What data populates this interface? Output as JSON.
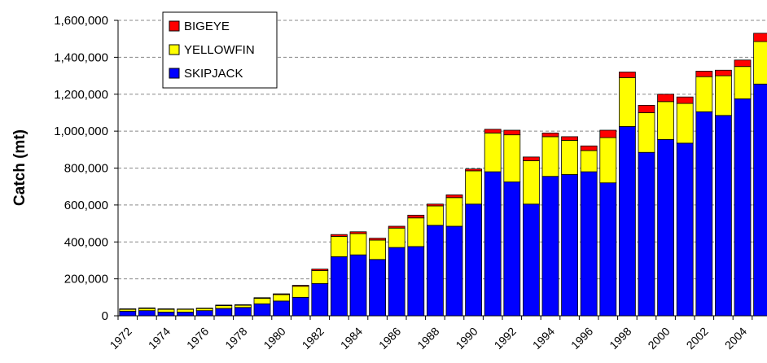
{
  "chart_data": {
    "type": "stacked_bar",
    "y_label": "Catch (mt)",
    "categories": [
      "1972",
      null,
      "1974",
      null,
      "1976",
      null,
      "1978",
      null,
      "1980",
      null,
      "1982",
      null,
      "1984",
      null,
      "1986",
      null,
      "1988",
      null,
      "1990",
      null,
      "1992",
      null,
      "1994",
      null,
      "1996",
      null,
      "1998",
      null,
      "2000",
      null,
      "2002",
      null,
      "2004",
      null
    ],
    "series": [
      {
        "name": "SKIPJACK",
        "color": "#0000ff",
        "values": [
          25000,
          28000,
          20000,
          20000,
          28000,
          40000,
          45000,
          65000,
          80000,
          100000,
          175000,
          320000,
          330000,
          305000,
          370000,
          375000,
          490000,
          485000,
          605000,
          780000,
          725000,
          605000,
          755000,
          765000,
          780000,
          720000,
          1025000,
          885000,
          955000,
          935000,
          1105000,
          1085000,
          1175000,
          1255000
        ]
      },
      {
        "name": "YELLOWFIN",
        "color": "#ffff00",
        "values": [
          10000,
          12000,
          15000,
          15000,
          12000,
          15000,
          12000,
          30000,
          35000,
          60000,
          70000,
          110000,
          115000,
          105000,
          105000,
          155000,
          105000,
          155000,
          180000,
          210000,
          255000,
          235000,
          215000,
          185000,
          115000,
          245000,
          265000,
          215000,
          205000,
          215000,
          190000,
          215000,
          175000,
          230000
        ]
      },
      {
        "name": "BIGEYE",
        "color": "#ff0000",
        "values": [
          3000,
          3000,
          3000,
          2000,
          2000,
          3000,
          3000,
          3000,
          4000,
          5000,
          8000,
          10000,
          10000,
          10000,
          10000,
          15000,
          10000,
          15000,
          10000,
          20000,
          25000,
          20000,
          20000,
          20000,
          25000,
          40000,
          30000,
          40000,
          40000,
          35000,
          30000,
          30000,
          35000,
          45000
        ]
      }
    ],
    "ylim": [
      0,
      1600000
    ],
    "yticks": [
      0,
      {
        "value": 200000,
        "label": "200,000"
      },
      {
        "value": 400000,
        "label": "400,000"
      },
      {
        "value": 600000,
        "label": "600,000"
      },
      {
        "value": 800000,
        "label": "800,000"
      },
      {
        "value": 1000000,
        "label": "1,000,000"
      },
      {
        "value": 1200000,
        "label": "1,200,000"
      },
      {
        "value": 1400000,
        "label": "1,400,000"
      },
      {
        "value": 1600000,
        "label": "1,600,000"
      }
    ],
    "grid": true
  }
}
